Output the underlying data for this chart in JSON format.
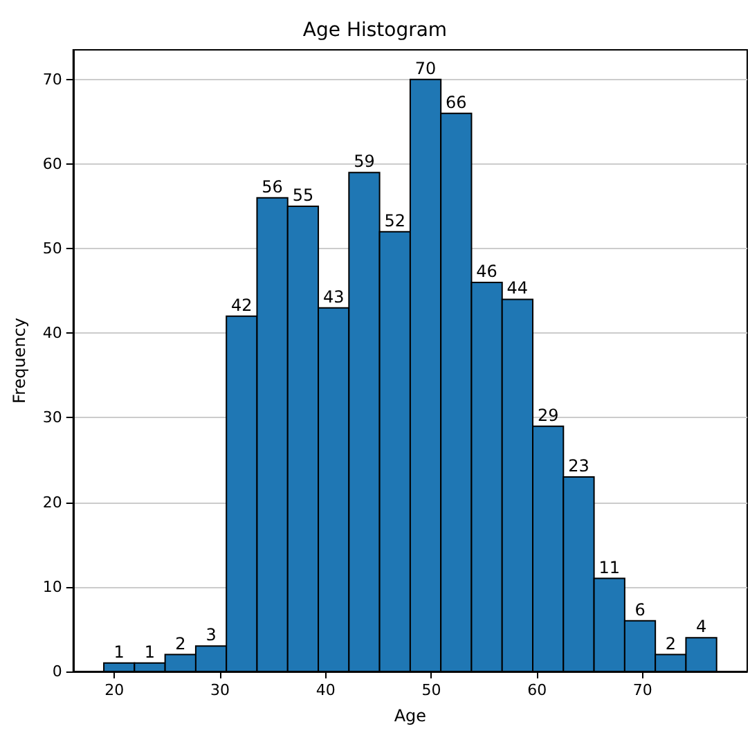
{
  "chart_data": {
    "type": "histogram",
    "title": "Age Histogram",
    "xlabel": "Age",
    "ylabel": "Frequency",
    "bins": [
      19,
      21.9,
      24.8,
      27.7,
      30.6,
      33.5,
      36.4,
      39.3,
      42.2,
      45.1,
      48,
      50.9,
      53.8,
      56.7,
      59.6,
      62.5,
      65.4,
      68.3,
      71.2,
      74.1,
      77
    ],
    "values": [
      1,
      1,
      2,
      3,
      42,
      56,
      55,
      43,
      59,
      52,
      70,
      66,
      46,
      44,
      29,
      23,
      11,
      6,
      2,
      4
    ],
    "color": "#1f77b4",
    "xlim": [
      16.1,
      79.9
    ],
    "ylim": [
      0,
      73.5
    ],
    "xticks": [
      20,
      30,
      40,
      50,
      60,
      70
    ],
    "yticks": [
      0,
      10,
      20,
      30,
      40,
      50,
      60,
      70
    ],
    "grid": "y",
    "data_labels": true
  }
}
